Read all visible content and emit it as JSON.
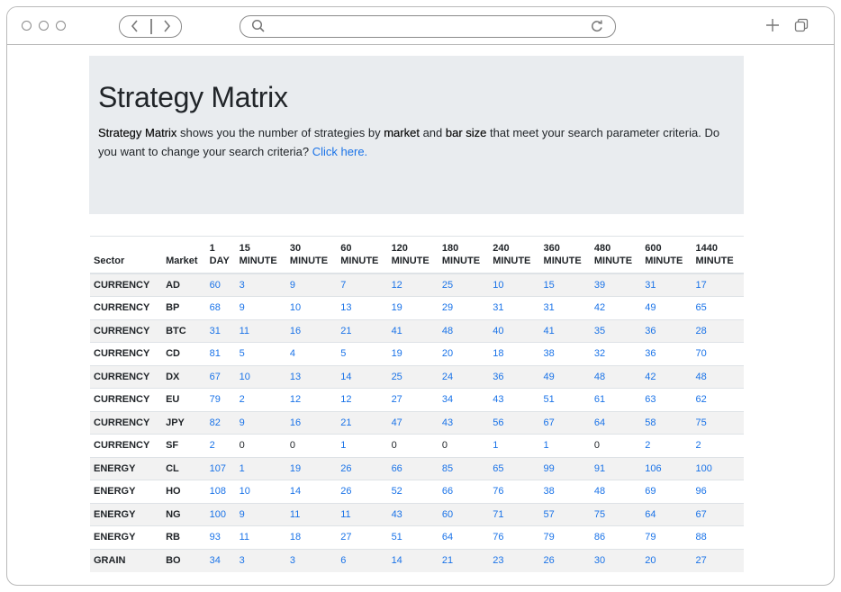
{
  "browser": {
    "icons": {
      "back": "chevron-left-icon",
      "forward": "chevron-right-icon",
      "search": "search-icon",
      "reload": "reload-icon",
      "new_tab": "plus-icon",
      "tabs": "tabs-icon"
    }
  },
  "jumbotron": {
    "title": "Strategy Matrix",
    "desc_bold1": "Strategy Matrix",
    "desc_text1": " shows you the number of strategies by ",
    "desc_bold2": "market",
    "desc_text2": " and ",
    "desc_bold3": "bar size",
    "desc_text3": " that meet your search parameter criteria. Do you want to change your search criteria? ",
    "link_label": "Click here."
  },
  "table": {
    "headers": [
      {
        "top": "",
        "bottom": "Sector"
      },
      {
        "top": "",
        "bottom": "Market"
      },
      {
        "top": "1",
        "bottom": "DAY"
      },
      {
        "top": "15",
        "bottom": "MINUTE"
      },
      {
        "top": "30",
        "bottom": "MINUTE"
      },
      {
        "top": "60",
        "bottom": "MINUTE"
      },
      {
        "top": "120",
        "bottom": "MINUTE"
      },
      {
        "top": "180",
        "bottom": "MINUTE"
      },
      {
        "top": "240",
        "bottom": "MINUTE"
      },
      {
        "top": "360",
        "bottom": "MINUTE"
      },
      {
        "top": "480",
        "bottom": "MINUTE"
      },
      {
        "top": "600",
        "bottom": "MINUTE"
      },
      {
        "top": "1440",
        "bottom": "MINUTE"
      }
    ],
    "rows": [
      {
        "sector": "CURRENCY",
        "market": "AD",
        "values": [
          60,
          3,
          9,
          7,
          12,
          25,
          10,
          15,
          39,
          31,
          17
        ]
      },
      {
        "sector": "CURRENCY",
        "market": "BP",
        "values": [
          68,
          9,
          10,
          13,
          19,
          29,
          31,
          31,
          42,
          49,
          65
        ]
      },
      {
        "sector": "CURRENCY",
        "market": "BTC",
        "values": [
          31,
          11,
          16,
          21,
          41,
          48,
          40,
          41,
          35,
          36,
          28
        ]
      },
      {
        "sector": "CURRENCY",
        "market": "CD",
        "values": [
          81,
          5,
          4,
          5,
          19,
          20,
          18,
          38,
          32,
          36,
          70
        ]
      },
      {
        "sector": "CURRENCY",
        "market": "DX",
        "values": [
          67,
          10,
          13,
          14,
          25,
          24,
          36,
          49,
          48,
          42,
          48
        ]
      },
      {
        "sector": "CURRENCY",
        "market": "EU",
        "values": [
          79,
          2,
          12,
          12,
          27,
          34,
          43,
          51,
          61,
          63,
          62
        ]
      },
      {
        "sector": "CURRENCY",
        "market": "JPY",
        "values": [
          82,
          9,
          16,
          21,
          47,
          43,
          56,
          67,
          64,
          58,
          75
        ]
      },
      {
        "sector": "CURRENCY",
        "market": "SF",
        "values": [
          2,
          0,
          0,
          1,
          0,
          0,
          1,
          1,
          0,
          2,
          2
        ]
      },
      {
        "sector": "ENERGY",
        "market": "CL",
        "values": [
          107,
          1,
          19,
          26,
          66,
          85,
          65,
          99,
          91,
          106,
          100
        ]
      },
      {
        "sector": "ENERGY",
        "market": "HO",
        "values": [
          108,
          10,
          14,
          26,
          52,
          66,
          76,
          38,
          48,
          69,
          96
        ]
      },
      {
        "sector": "ENERGY",
        "market": "NG",
        "values": [
          100,
          9,
          11,
          11,
          43,
          60,
          71,
          57,
          75,
          64,
          67
        ]
      },
      {
        "sector": "ENERGY",
        "market": "RB",
        "values": [
          93,
          11,
          18,
          27,
          51,
          64,
          76,
          79,
          86,
          79,
          88
        ]
      },
      {
        "sector": "GRAIN",
        "market": "BO",
        "values": [
          34,
          3,
          3,
          6,
          14,
          21,
          23,
          26,
          30,
          20,
          27
        ]
      }
    ]
  }
}
